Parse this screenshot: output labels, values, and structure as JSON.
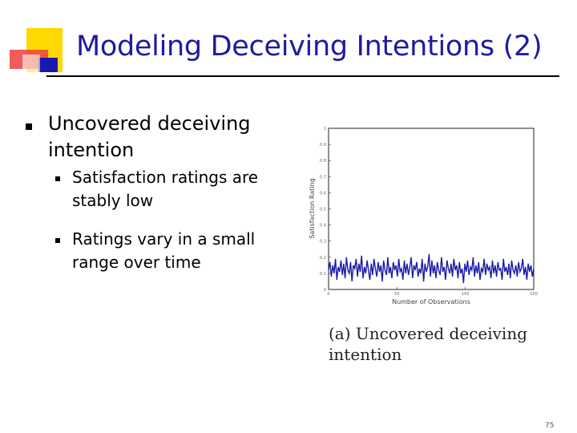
{
  "slide": {
    "title": "Modeling Deceiving Intentions (2)",
    "bullet_main": "Uncovered deceiving intention",
    "sub_bullets": [
      "Satisfaction ratings are stably low",
      "Ratings vary in a small range over time"
    ],
    "caption_label": "(a)",
    "caption_text": "Uncovered deceiving intention",
    "page_number": "75"
  },
  "colors": {
    "title": "#1f1aa0",
    "series": "#1a1aa8",
    "logo_yellow": "#ffd800",
    "logo_red": "#f04040",
    "logo_blue": "#1818b0"
  },
  "chart_data": {
    "type": "line",
    "xlabel": "Number of Observations",
    "ylabel": "Satisfaction Rating",
    "xlim": [
      0,
      150
    ],
    "ylim": [
      0,
      1
    ],
    "x_ticks": [
      "0",
      "50",
      "100",
      "150"
    ],
    "y_ticks": [
      "1",
      "0.9",
      "0.8",
      "0.7",
      "0.6",
      "0.5",
      "0.4",
      "0.3",
      "0.2",
      "0.1",
      "0"
    ],
    "series": [
      {
        "values": [
          0.12,
          0.17,
          0.08,
          0.15,
          0.1,
          0.19,
          0.06,
          0.14,
          0.11,
          0.18,
          0.09,
          0.16,
          0.07,
          0.2,
          0.12,
          0.1,
          0.17,
          0.05,
          0.15,
          0.13,
          0.19,
          0.08,
          0.16,
          0.11,
          0.21,
          0.07,
          0.14,
          0.1,
          0.18,
          0.12,
          0.06,
          0.16,
          0.09,
          0.19,
          0.13,
          0.08,
          0.17,
          0.11,
          0.15,
          0.05,
          0.18,
          0.12,
          0.09,
          0.2,
          0.1,
          0.14,
          0.07,
          0.17,
          0.12,
          0.15,
          0.08,
          0.19,
          0.11,
          0.13,
          0.06,
          0.18,
          0.1,
          0.16,
          0.09,
          0.14,
          0.2,
          0.07,
          0.15,
          0.12,
          0.17,
          0.08,
          0.13,
          0.1,
          0.19,
          0.05,
          0.16,
          0.11,
          0.14,
          0.22,
          0.08,
          0.18,
          0.1,
          0.15,
          0.07,
          0.17,
          0.12,
          0.09,
          0.2,
          0.11,
          0.14,
          0.06,
          0.18,
          0.13,
          0.1,
          0.16,
          0.08,
          0.19,
          0.12,
          0.15,
          0.07,
          0.17,
          0.1,
          0.13,
          0.04,
          0.16,
          0.11,
          0.18,
          0.09,
          0.14,
          0.12,
          0.2,
          0.08,
          0.15,
          0.1,
          0.17,
          0.06,
          0.13,
          0.11,
          0.19,
          0.09,
          0.16,
          0.12,
          0.14,
          0.07,
          0.18,
          0.1,
          0.15,
          0.08,
          0.17,
          0.12,
          0.13,
          0.06,
          0.19,
          0.11,
          0.14,
          0.09,
          0.16,
          0.07,
          0.18,
          0.12,
          0.1,
          0.15,
          0.08,
          0.17,
          0.11,
          0.13,
          0.19,
          0.09,
          0.14,
          0.06,
          0.16,
          0.11,
          0.15,
          0.08,
          0.13
        ]
      }
    ]
  }
}
